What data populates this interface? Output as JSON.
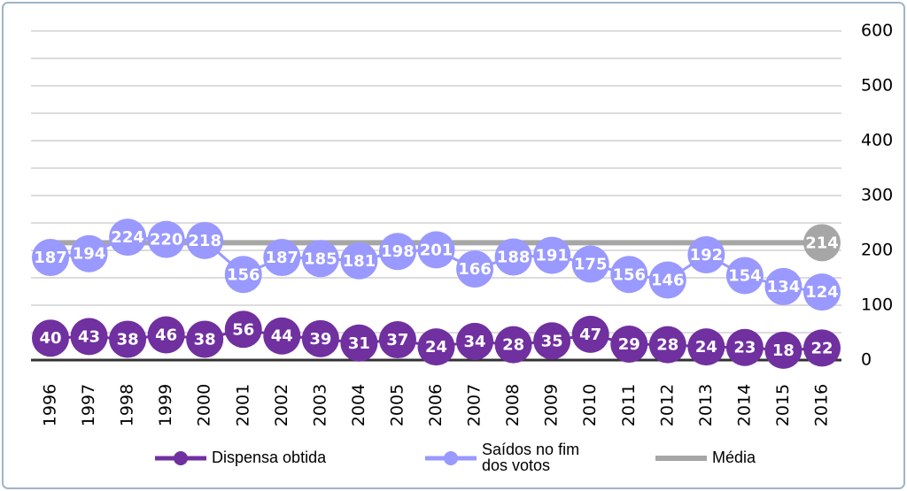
{
  "chart_data": {
    "type": "line",
    "categories": [
      "1996",
      "1997",
      "1998",
      "1999",
      "2000",
      "2001",
      "2002",
      "2003",
      "2004",
      "2005",
      "2006",
      "2007",
      "2008",
      "2009",
      "2010",
      "2011",
      "2012",
      "2013",
      "2014",
      "2015",
      "2016"
    ],
    "series": [
      {
        "name": "Dispensa obtida",
        "color": "#7030a0",
        "values": [
          40,
          43,
          38,
          46,
          38,
          56,
          44,
          39,
          31,
          37,
          24,
          34,
          28,
          35,
          47,
          29,
          28,
          24,
          23,
          18,
          22
        ]
      },
      {
        "name": "Saídos no fim\ndos votos",
        "color": "#9999ff",
        "values": [
          187,
          194,
          224,
          220,
          218,
          156,
          187,
          185,
          181,
          198,
          201,
          166,
          188,
          191,
          175,
          156,
          146,
          192,
          154,
          134,
          124
        ]
      },
      {
        "name": "Média",
        "color": "#a6a6a6",
        "values": [
          214,
          214,
          214,
          214,
          214,
          214,
          214,
          214,
          214,
          214,
          214,
          214,
          214,
          214,
          214,
          214,
          214,
          214,
          214,
          214,
          214
        ],
        "data_labels": "last"
      }
    ],
    "ylim": [
      0,
      600
    ],
    "yticks": [
      0,
      100,
      200,
      300,
      400,
      500,
      600
    ],
    "y_axis_side": "right",
    "grid": true,
    "legend": "bottom"
  }
}
